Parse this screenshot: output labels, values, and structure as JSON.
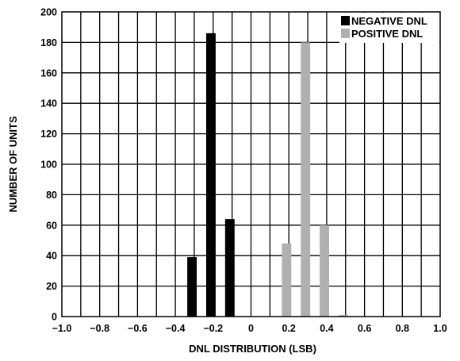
{
  "chart_data": {
    "type": "bar",
    "title": "",
    "xlabel": "DNL DISTRIBUTION (LSB)",
    "ylabel": "NUMBER OF UNITS",
    "xlim": [
      -1.0,
      1.0
    ],
    "ylim": [
      0,
      200
    ],
    "x_ticks": [
      -1.0,
      -0.8,
      -0.6,
      -0.4,
      -0.2,
      0,
      0.2,
      0.4,
      0.6,
      0.8,
      1.0
    ],
    "x_tick_labels": [
      "−1.0",
      "−0.8",
      "−0.6",
      "−0.4",
      "−0.2",
      "0",
      "0.2",
      "0.4",
      "0.6",
      "0.8",
      "1.0"
    ],
    "y_ticks": [
      0,
      20,
      40,
      60,
      80,
      100,
      120,
      140,
      160,
      180,
      200
    ],
    "y_tick_labels": [
      "0",
      "20",
      "40",
      "60",
      "80",
      "100",
      "120",
      "140",
      "160",
      "180",
      "200"
    ],
    "grid": true,
    "bar_width": 0.05,
    "legend_position": "top-right",
    "series": [
      {
        "name": "NEGATIVE DNL",
        "color": "#000000",
        "x": [
          -0.3,
          -0.2,
          -0.1
        ],
        "values": [
          39,
          186,
          64
        ]
      },
      {
        "name": "POSITIVE DNL",
        "color": "#b0b0b0",
        "x": [
          0.2,
          0.3,
          0.4,
          0.5
        ],
        "values": [
          48,
          180,
          60,
          1
        ]
      }
    ]
  }
}
